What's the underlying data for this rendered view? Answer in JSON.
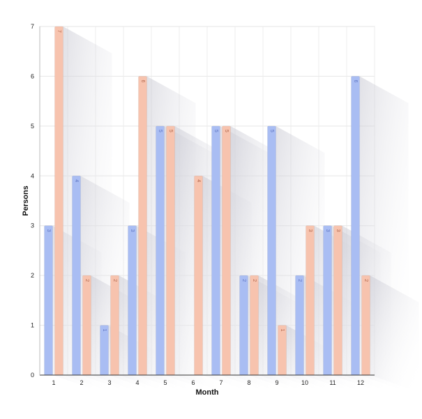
{
  "chart_data": {
    "type": "bar",
    "categories": [
      "1",
      "2",
      "3",
      "4",
      "5",
      "6",
      "7",
      "8",
      "9",
      "10",
      "11",
      "12"
    ],
    "series": [
      {
        "values": [
          3,
          4,
          1,
          3,
          5,
          0,
          5,
          2,
          5,
          2,
          3,
          6
        ],
        "color": "#a9bdf3",
        "label_color": "#5d73c2"
      },
      {
        "values": [
          7,
          2,
          2,
          6,
          5,
          4,
          5,
          2,
          1,
          3,
          3,
          2
        ],
        "color": "#f7c3ae",
        "label_color": "#b0644a"
      }
    ],
    "xlabel": "Month",
    "ylabel": "Persons",
    "ylim": [
      0,
      7
    ],
    "yticks": [
      "0",
      "1",
      "2",
      "3",
      "4",
      "5",
      "6",
      "7"
    ],
    "grid": true,
    "bar_labels": true
  }
}
